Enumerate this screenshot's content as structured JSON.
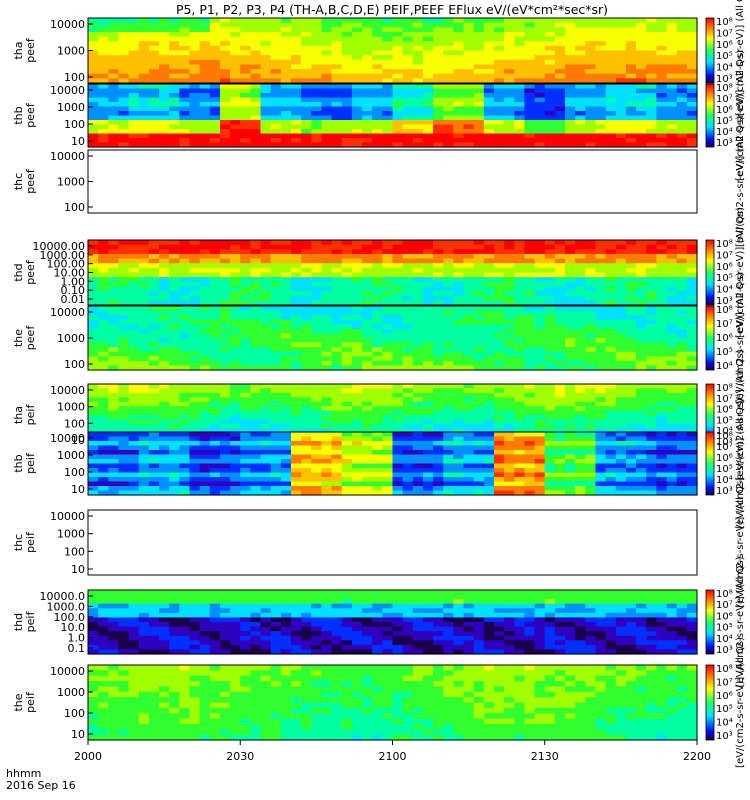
{
  "chart_data": {
    "type": "heatmap",
    "title": "P5, P1, P2, P3, P4 (TH-A,B,C,D,E) PEIF,PEEF EFlux eV/(eV*cm²*sec*sr)",
    "x_ticks": [
      "2000",
      "2030",
      "2100",
      "2130",
      "2200"
    ],
    "x_label_top": "hhmm",
    "x_label_bottom": "2016 Sep 16",
    "colormap": "rainbow",
    "panels": [
      {
        "name": "tha peef",
        "y_ticks": [
          "10000",
          "1000",
          "100"
        ],
        "empty": false,
        "colorbar": true,
        "cb_label": "[eV/(cm2-s-sr-eV)] (All Qs)",
        "cb_ticks": [
          "10⁸",
          "10⁷",
          "10⁶",
          "10⁵",
          "10⁴",
          "10³"
        ]
      },
      {
        "name": "thb peef",
        "y_ticks": [
          "10000",
          "1000",
          "100",
          "10"
        ],
        "empty": false,
        "colorbar": true,
        "cb_label": "[eV/(cm2-s-sr-eV)] (All Qs)",
        "cb_ticks": [
          "10⁸",
          "10⁷",
          "10⁶",
          "10⁵",
          "10⁴",
          "10³"
        ]
      },
      {
        "name": "thc peef",
        "y_ticks": [
          "10000",
          "1000",
          "100"
        ],
        "empty": true,
        "colorbar": false,
        "cb_label": "[eV/(cm2-s-sr-eV)] (All Qs)",
        "cb_ticks": []
      },
      {
        "name": "thd peef",
        "y_ticks": [
          "10000.00",
          "1000.00",
          "100.00",
          "10.00",
          "1.00",
          "0.10",
          "0.01"
        ],
        "empty": false,
        "colorbar": true,
        "cb_label": "[eV/(cm2-s-sr-eV)] (All Qs)",
        "cb_ticks": [
          "10⁸",
          "10⁷",
          "10⁶",
          "10⁵",
          "10⁴",
          "10³"
        ]
      },
      {
        "name": "the peef",
        "y_ticks": [
          "10000",
          "1000",
          "100"
        ],
        "empty": false,
        "colorbar": true,
        "cb_label": "[eV/(cm2-s-sr-eV)] (All Qs)",
        "cb_ticks": [
          "10⁸",
          "10⁷",
          "10⁶",
          "10⁵",
          "10⁴"
        ]
      },
      {
        "name": "tha peif",
        "y_ticks": [
          "10000",
          "1000",
          "100",
          "10"
        ],
        "empty": false,
        "colorbar": true,
        "cb_label": "[eV/(cm2-s-sr-eV)] (All Qs)",
        "cb_ticks": [
          "10⁸",
          "10⁷",
          "10⁶",
          "10⁵",
          "10⁴",
          "10³"
        ]
      },
      {
        "name": "thb peif",
        "y_ticks": [
          "10000",
          "1000",
          "100",
          "10"
        ],
        "empty": false,
        "colorbar": true,
        "cb_label": "[eV/(cm2-s-sr-eV)] (All Qs)",
        "cb_ticks": [
          "10⁸",
          "10⁷",
          "10⁶",
          "10⁵",
          "10⁴",
          "10³"
        ]
      },
      {
        "name": "thc peif",
        "y_ticks": [
          "10000",
          "1000",
          "100",
          "10"
        ],
        "empty": true,
        "colorbar": false,
        "cb_label": "[eV/(cm2-s-sr-eV)] (All Qs)",
        "cb_ticks": []
      },
      {
        "name": "thd peif",
        "y_ticks": [
          "10000.0",
          "1000.0",
          "100.0",
          "10.0",
          "1.0",
          "0.1"
        ],
        "empty": false,
        "colorbar": true,
        "cb_label": "[eV/(cm2-s-sr-eV)] (All Qs)",
        "cb_ticks": [
          "10⁸",
          "10⁷",
          "10⁶",
          "10⁵",
          "10⁴",
          "10³"
        ]
      },
      {
        "name": "the peif",
        "y_ticks": [
          "10000",
          "1000",
          "100",
          "10"
        ],
        "empty": false,
        "colorbar": true,
        "cb_label": "[eV/(cm2-s-sr-eV)] (All Qs)",
        "cb_ticks": [
          "10⁸",
          "10⁷",
          "10⁶",
          "10⁵",
          "10⁴",
          "10³"
        ]
      }
    ]
  }
}
